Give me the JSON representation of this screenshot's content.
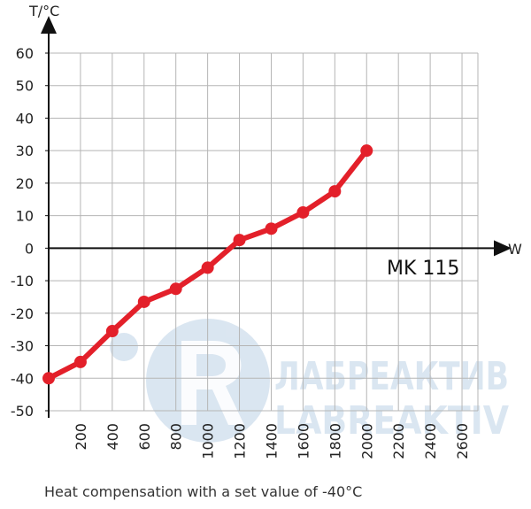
{
  "chart_data": {
    "type": "line",
    "xlabel": "W",
    "ylabel": "T/°C",
    "xlim": [
      0,
      2700
    ],
    "ylim": [
      -50,
      60
    ],
    "x_ticks": [
      200,
      400,
      600,
      800,
      1000,
      1200,
      1400,
      1600,
      1800,
      2000,
      2200,
      2400,
      2600
    ],
    "x_tick_labels": [
      "200",
      "400",
      "600",
      "800",
      "1000",
      "1200",
      "1400",
      "1600",
      "1800",
      "2000",
      "2200",
      "2400",
      "2600"
    ],
    "y_ticks": [
      60,
      50,
      40,
      30,
      20,
      10,
      0,
      -10,
      -20,
      -30,
      -40,
      -50
    ],
    "y_tick_labels": [
      "60",
      "50",
      "40",
      "30",
      "20",
      "10",
      "0",
      "-10",
      "-20",
      "-30",
      "-40",
      "-50"
    ],
    "grid": true,
    "annotation": "MK 115",
    "series": [
      {
        "color": "#e3202a",
        "x": [
          0,
          200,
          400,
          600,
          800,
          1000,
          1200,
          1400,
          1600,
          1800,
          2000
        ],
        "y": [
          -40,
          -35,
          -25.5,
          -16.5,
          -12.5,
          -6,
          2.5,
          6,
          11,
          17.5,
          30
        ]
      }
    ]
  },
  "caption": "Heat compensation with a set value of -40°C",
  "watermark": {
    "line1": "ЛАБРЕАКТИВ",
    "line2": "LABREAKTIV"
  },
  "colors": {
    "series": "#e3202a",
    "grid": "#b5b5b5",
    "axis": "#111111",
    "watermark": "#d2e0ee"
  }
}
